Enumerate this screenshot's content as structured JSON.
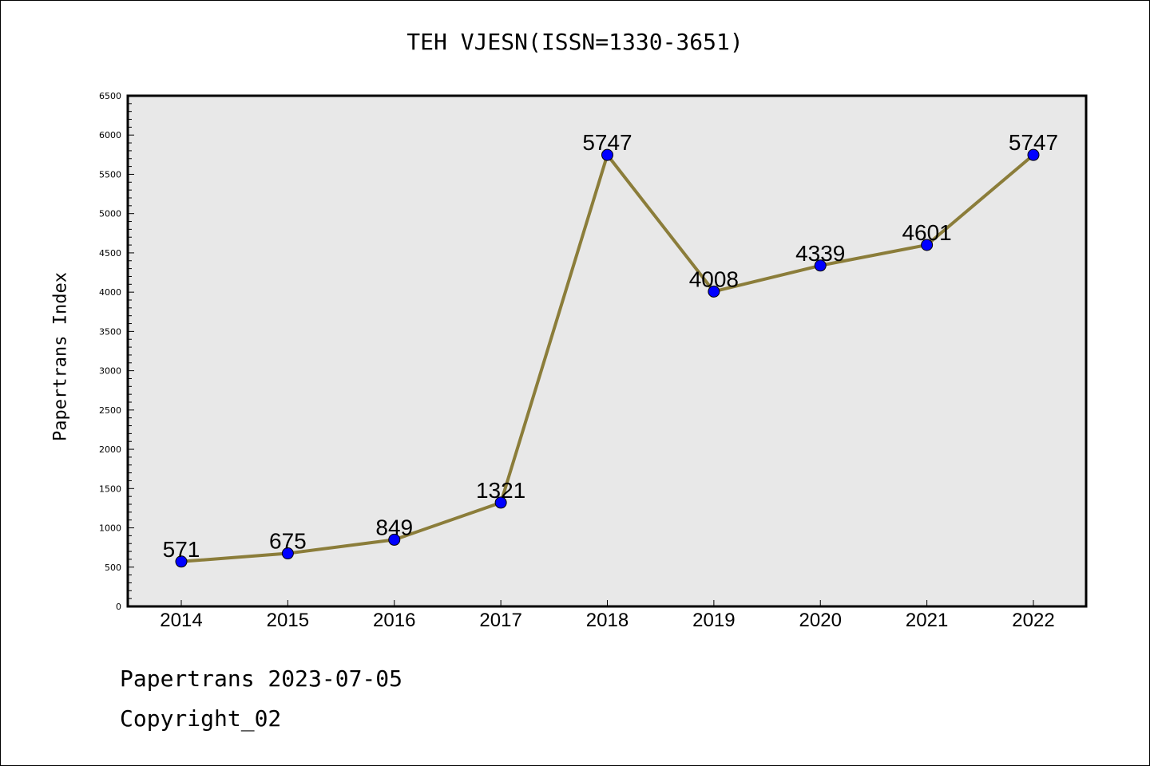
{
  "title": "TEH VJESN(ISSN=1330-3651)",
  "ylabel": "Papertrans Index",
  "footer": {
    "line1": "Papertrans 2023-07-05",
    "line2": "Copyright_02"
  },
  "colors": {
    "plot_background": "#e8e8e8",
    "line": "#8b7d3a",
    "marker": "#0000ff"
  },
  "chart_data": {
    "type": "line",
    "title": "TEH VJESN(ISSN=1330-3651)",
    "xlabel": "",
    "ylabel": "Papertrans Index",
    "categories": [
      "2014",
      "2015",
      "2016",
      "2017",
      "2018",
      "2019",
      "2020",
      "2021",
      "2022"
    ],
    "series": [
      {
        "values": [
          571,
          675,
          849,
          1321,
          5747,
          4008,
          4339,
          4601,
          5747
        ]
      }
    ],
    "data_labels": [
      "571",
      "675",
      "849",
      "1321",
      "5747",
      "4008",
      "4339",
      "4601",
      "5747"
    ],
    "ylim": [
      0,
      6500
    ],
    "yticks": [
      "0",
      "500",
      "1000",
      "1500",
      "2000",
      "2500",
      "3000",
      "3500",
      "4000",
      "4500",
      "5000",
      "5500",
      "6000",
      "6500"
    ],
    "grid": false,
    "legend": "none"
  }
}
